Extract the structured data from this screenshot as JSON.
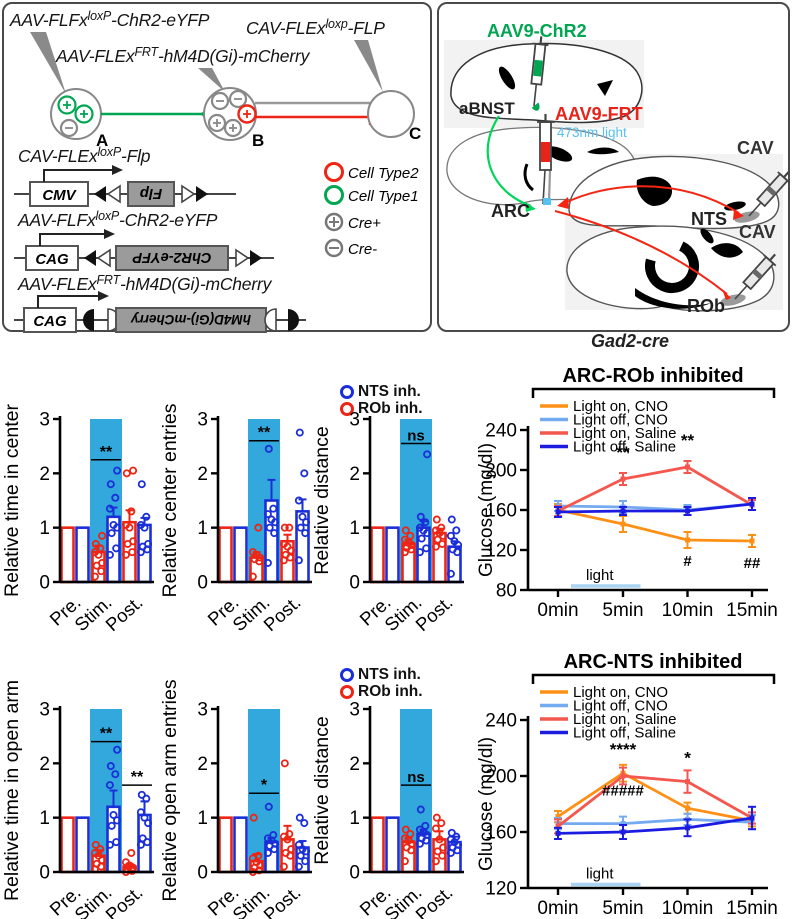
{
  "colors": {
    "red": "#ee2414",
    "blue": "#1b2fd8",
    "green": "#00a651",
    "stim_band": "#33a8dc",
    "light_bar": "#a9d3f2",
    "light_blue_text": "#56c2f0",
    "line_orange": "#ff9015",
    "line_lightblue": "#74aaf0",
    "line_red": "#f4574e",
    "line_blue": "#1c1ce0"
  },
  "panel_constructs": {
    "virus_labels": [
      {
        "prefix": "AAV-FLFx",
        "sup": "loxP",
        "suffix": "-ChR2-eYFP"
      },
      {
        "prefix": "CAV-FLEx",
        "sup": "loxp",
        "suffix": "-FLP"
      },
      {
        "prefix": "AAV-FLEx",
        "sup": "FRT",
        "suffix": "-hM4D(Gi)-mCherry"
      }
    ],
    "cell_labels": [
      "A",
      "B",
      "C"
    ],
    "construct_rows": [
      {
        "label_prefix": "CAV-FLEx",
        "label_sup": "loxP",
        "label_suffix": "-Flp",
        "promoter": "CMV",
        "gene": "Flp"
      },
      {
        "label_prefix": "AAV-FLFx",
        "label_sup": "loxP",
        "label_suffix": "-ChR2-eYFP",
        "promoter": "CAG",
        "gene": "ChR2-eYFP"
      },
      {
        "label_prefix": "AAV-FLEx",
        "label_sup": "FRT",
        "label_suffix": "-hM4D(Gi)-mCherry",
        "promoter": "CAG",
        "gene": "hM4D(Gi)-mCherry"
      }
    ],
    "legend": [
      {
        "label": "Cell Type2"
      },
      {
        "label": "Cell Type1"
      },
      {
        "label": "Cre+"
      },
      {
        "label": "Cre-"
      }
    ]
  },
  "panel_brain": {
    "labels": {
      "chr2": "AAV9-ChR2",
      "abnst": "aBNST",
      "frt": "AAV9-FRT",
      "light473": "473nm light",
      "cav1": "CAV",
      "cav2": "CAV",
      "arc": "ARC",
      "nts": "NTS",
      "rob": "ROb"
    },
    "caption": "Gad2-cre"
  },
  "bar_legend": {
    "items": [
      {
        "label": "NTS inh.",
        "color": "#1b2fd8"
      },
      {
        "label": "ROb inh.",
        "color": "#ee2414"
      }
    ]
  },
  "chart_data": [
    {
      "type": "bar",
      "ylabel": "Relative time in center",
      "ylim": [
        0,
        3
      ],
      "yticks": [
        0,
        1,
        2,
        3
      ],
      "categories": [
        "Pre.",
        "Stim.",
        "Post."
      ],
      "stim_band_category": 1,
      "series": [
        {
          "name": "ROb inh.",
          "color": "#ee2414",
          "means": [
            1,
            0.55,
            1.1
          ],
          "err": [
            0,
            0.12,
            0.22
          ],
          "points": [
            [],
            [
              0.1,
              0.2,
              0.3,
              0.35,
              0.5,
              0.55,
              0.62,
              0.7,
              0.85
            ],
            [
              0.5,
              0.55,
              0.7,
              0.75,
              1.0,
              1.05,
              1.3,
              2.0,
              2.05
            ]
          ]
        },
        {
          "name": "NTS inh.",
          "color": "#1b2fd8",
          "means": [
            1,
            1.2,
            1.05
          ],
          "err": [
            0,
            0.17,
            0.13
          ],
          "points": [
            [],
            [
              0.5,
              0.62,
              0.9,
              1.0,
              1.05,
              1.35,
              1.55,
              1.8,
              2.05
            ],
            [
              0.55,
              0.6,
              0.65,
              0.7,
              1.0,
              1.05,
              1.2,
              1.8
            ]
          ]
        }
      ],
      "annotations": [
        {
          "category": 1,
          "label": "**",
          "y": 2.25
        }
      ]
    },
    {
      "type": "bar",
      "ylabel": "Relative center entries",
      "ylim": [
        0,
        3
      ],
      "yticks": [
        0,
        1,
        2,
        3
      ],
      "categories": [
        "Pre.",
        "Stim.",
        "Post."
      ],
      "stim_band_category": 1,
      "series": [
        {
          "name": "ROb inh.",
          "color": "#ee2414",
          "means": [
            1,
            0.45,
            0.75
          ],
          "err": [
            0,
            0.1,
            0.12
          ],
          "points": [
            [],
            [
              0.1,
              0.38,
              0.42,
              0.45,
              0.5,
              0.55,
              1.0
            ],
            [
              0.4,
              0.45,
              0.5,
              0.58,
              0.65,
              0.7,
              1.0,
              1.0
            ]
          ]
        },
        {
          "name": "NTS inh.",
          "color": "#1b2fd8",
          "means": [
            1,
            1.5,
            1.3
          ],
          "err": [
            0,
            0.38,
            0.22
          ],
          "points": [
            [],
            [
              0.35,
              0.9,
              1.0,
              1.1,
              1.15,
              1.25,
              1.35,
              2.45
            ],
            [
              0.4,
              0.9,
              1.0,
              1.1,
              1.2,
              1.5,
              2.0,
              2.75
            ]
          ]
        }
      ],
      "annotations": [
        {
          "category": 1,
          "label": "**",
          "y": 2.6
        }
      ]
    },
    {
      "type": "bar",
      "ylabel": "Relative distance",
      "ylim": [
        0,
        3
      ],
      "yticks": [
        0,
        1,
        2,
        3
      ],
      "categories": [
        "Pre.",
        "Stim.",
        "Post."
      ],
      "stim_band_category": 1,
      "series": [
        {
          "name": "ROb inh.",
          "color": "#ee2414",
          "means": [
            1,
            0.7,
            0.9
          ],
          "err": [
            0,
            0.08,
            0.08
          ],
          "points": [
            [],
            [
              0.55,
              0.6,
              0.63,
              0.68,
              0.72,
              0.78,
              0.85,
              0.95
            ],
            [
              0.65,
              0.7,
              0.78,
              0.85,
              0.9,
              0.95,
              1.0,
              1.15
            ]
          ]
        },
        {
          "name": "NTS inh.",
          "color": "#1b2fd8",
          "means": [
            1,
            1.0,
            0.65
          ],
          "err": [
            0,
            0.12,
            0.1
          ],
          "points": [
            [],
            [
              0.55,
              0.62,
              0.8,
              0.9,
              0.95,
              1.0,
              1.1,
              1.2,
              2.35
            ],
            [
              0.15,
              0.55,
              0.6,
              0.68,
              0.75,
              0.85,
              0.95,
              1.15
            ]
          ]
        }
      ],
      "annotations": [
        {
          "category": 1,
          "label": "ns",
          "y": 2.55
        }
      ]
    },
    {
      "type": "line",
      "title": "ARC-ROb inhibited",
      "ylabel": "Glucose (mg/dl)",
      "ylim": [
        80,
        240
      ],
      "yticks": [
        80,
        120,
        160,
        200,
        240
      ],
      "x_labels": [
        "0min",
        "5min",
        "10min",
        "15min"
      ],
      "series": [
        {
          "name": "Light on, CNO",
          "color": "#ff9015",
          "values": [
            160,
            146,
            130,
            129
          ],
          "err": [
            6,
            8,
            8,
            6
          ]
        },
        {
          "name": "Light off, CNO",
          "color": "#74aaf0",
          "values": [
            164,
            163,
            160,
            166
          ],
          "err": [
            5,
            6,
            5,
            6
          ]
        },
        {
          "name": "Light on, Saline",
          "color": "#f4574e",
          "values": [
            159,
            191,
            203,
            165
          ],
          "err": [
            5,
            6,
            6,
            5
          ]
        },
        {
          "name": "Light off, Saline",
          "color": "#1c1ce0",
          "values": [
            158,
            159,
            159,
            166
          ],
          "err": [
            5,
            4,
            4,
            6
          ]
        }
      ],
      "annotations": [
        {
          "x": 1,
          "y": 212,
          "label": "**"
        },
        {
          "x": 2,
          "y": 224,
          "label": "**"
        },
        {
          "x": 2,
          "y": 104,
          "label": "#"
        },
        {
          "x": 3,
          "y": 102,
          "label": "##"
        }
      ],
      "light_bar": {
        "x0": 0.2,
        "x1": 1.27,
        "y": 84,
        "label": "light"
      }
    },
    {
      "type": "bar",
      "ylabel": "Relative time in open arm",
      "ylim": [
        0,
        3
      ],
      "yticks": [
        0,
        1,
        2,
        3
      ],
      "categories": [
        "Pre.",
        "Stim.",
        "Post."
      ],
      "stim_band_category": 1,
      "series": [
        {
          "name": "ROb inh.",
          "color": "#ee2414",
          "means": [
            1,
            0.3,
            0.1
          ],
          "err": [
            0,
            0.1,
            0.05
          ],
          "points": [
            [],
            [
              0.05,
              0.1,
              0.15,
              0.22,
              0.3,
              0.35,
              0.42,
              0.5
            ],
            [
              0.0,
              0.02,
              0.05,
              0.08,
              0.12,
              0.18,
              0.35
            ]
          ]
        },
        {
          "name": "NTS inh.",
          "color": "#1b2fd8",
          "means": [
            1,
            1.2,
            1.05
          ],
          "err": [
            0,
            0.3,
            0.25
          ],
          "points": [
            [],
            [
              0.5,
              0.55,
              0.85,
              0.95,
              1.05,
              1.6,
              1.8,
              1.95,
              2.25
            ],
            [
              0.5,
              0.55,
              0.62,
              0.9,
              1.0,
              1.1,
              1.35,
              1.42
            ]
          ]
        }
      ],
      "annotations": [
        {
          "category": 1,
          "label": "**",
          "y": 2.4
        },
        {
          "category": 2,
          "label": "**",
          "y": 1.6
        }
      ]
    },
    {
      "type": "bar",
      "ylabel": "Relative open arm entries",
      "ylim": [
        0,
        3
      ],
      "yticks": [
        0,
        1,
        2,
        3
      ],
      "categories": [
        "Pre.",
        "Stim.",
        "Post."
      ],
      "stim_band_category": 1,
      "series": [
        {
          "name": "ROb inh.",
          "color": "#ee2414",
          "means": [
            1,
            0.2,
            0.6
          ],
          "err": [
            0,
            0.13,
            0.25
          ],
          "points": [
            [],
            [
              0.0,
              0.03,
              0.08,
              0.12,
              0.18,
              0.25,
              0.3,
              1.0
            ],
            [
              0.1,
              0.3,
              0.35,
              0.42,
              0.6,
              0.65,
              0.7,
              2.0
            ]
          ]
        },
        {
          "name": "NTS inh.",
          "color": "#1b2fd8",
          "means": [
            1,
            0.55,
            0.45
          ],
          "err": [
            0,
            0.08,
            0.12
          ],
          "points": [
            [],
            [
              0.35,
              0.42,
              0.48,
              0.52,
              0.58,
              0.62,
              0.68,
              1.2
            ],
            [
              0.1,
              0.2,
              0.3,
              0.38,
              0.42,
              0.5,
              0.9,
              1.0
            ]
          ]
        }
      ],
      "annotations": [
        {
          "category": 1,
          "label": "*",
          "y": 1.45
        }
      ]
    },
    {
      "type": "bar",
      "ylabel": "Relative distance",
      "ylim": [
        0,
        3
      ],
      "yticks": [
        0,
        1,
        2,
        3
      ],
      "categories": [
        "Pre.",
        "Stim.",
        "Post."
      ],
      "stim_band_category": 1,
      "series": [
        {
          "name": "ROb inh.",
          "color": "#ee2414",
          "means": [
            1,
            0.55,
            0.6
          ],
          "err": [
            0,
            0.08,
            0.15
          ],
          "points": [
            [],
            [
              0.2,
              0.4,
              0.45,
              0.52,
              0.58,
              0.62,
              0.7,
              0.78
            ],
            [
              0.2,
              0.3,
              0.38,
              0.45,
              0.6,
              0.8,
              0.9,
              1.0
            ]
          ]
        },
        {
          "name": "NTS inh.",
          "color": "#1b2fd8",
          "means": [
            1,
            0.7,
            0.55
          ],
          "err": [
            0,
            0.08,
            0.1
          ],
          "points": [
            [],
            [
              0.52,
              0.58,
              0.62,
              0.68,
              0.72,
              0.78,
              0.85,
              1.15
            ],
            [
              0.35,
              0.4,
              0.45,
              0.5,
              0.55,
              0.6,
              0.65,
              0.72
            ]
          ]
        }
      ],
      "annotations": [
        {
          "category": 1,
          "label": "ns",
          "y": 1.6
        }
      ]
    },
    {
      "type": "line",
      "title": "ARC-NTS inhibited",
      "ylabel": "Glucose (mg/dl)",
      "ylim": [
        120,
        240
      ],
      "yticks": [
        120,
        160,
        200,
        240
      ],
      "x_labels": [
        "0min",
        "5min",
        "10min",
        "15min"
      ],
      "series": [
        {
          "name": "Light on, CNO",
          "color": "#ff9015",
          "values": [
            171,
            202,
            177,
            168
          ],
          "err": [
            4,
            6,
            4,
            4
          ]
        },
        {
          "name": "Light off, CNO",
          "color": "#74aaf0",
          "values": [
            166,
            166,
            169,
            167
          ],
          "err": [
            4,
            5,
            4,
            5
          ]
        },
        {
          "name": "Light on, Saline",
          "color": "#f4574e",
          "values": [
            164,
            200,
            196,
            170
          ],
          "err": [
            5,
            6,
            8,
            4
          ]
        },
        {
          "name": "Light off, Saline",
          "color": "#1c1ce0",
          "values": [
            159,
            160,
            163,
            170
          ],
          "err": [
            4,
            5,
            6,
            8
          ]
        }
      ],
      "annotations": [
        {
          "x": 1,
          "y": 215,
          "label": "****"
        },
        {
          "x": 1,
          "y": 186,
          "label": "#####"
        },
        {
          "x": 2,
          "y": 209,
          "label": "*"
        }
      ],
      "light_bar": {
        "x0": 0.2,
        "x1": 1.27,
        "y": 122.5,
        "label": "light"
      }
    }
  ]
}
